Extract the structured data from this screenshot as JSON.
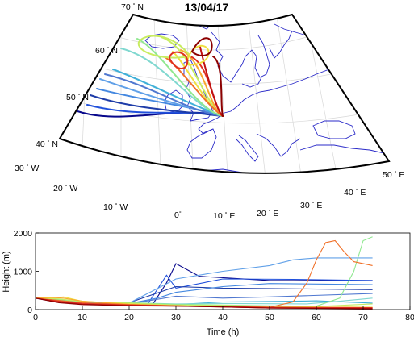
{
  "map": {
    "date_title": "13/04/17",
    "lat_labels": [
      "70",
      "60",
      "50",
      "40"
    ],
    "lon_labels": [
      "30",
      "20",
      "10",
      "0",
      "10",
      "20",
      "30",
      "40",
      "50"
    ],
    "lat_suffix": "N",
    "lon_suffixes": {
      "west": "W",
      "east": "E"
    },
    "degree_symbol": "°",
    "colors": {
      "coast": "#2a2ac8",
      "frame": "#000000",
      "grid": "#d0d0d0"
    }
  },
  "chart_data": {
    "type": "line",
    "title": "",
    "xlabel": "Time (h)",
    "ylabel": "Height (m)",
    "xlim": [
      0,
      80
    ],
    "ylim": [
      0,
      2000
    ],
    "xticks": [
      0,
      10,
      20,
      30,
      40,
      50,
      60,
      70,
      80
    ],
    "yticks": [
      0,
      1000,
      2000
    ],
    "grid": false,
    "series": [
      {
        "color": "#08088c",
        "x": [
          0,
          3,
          6,
          10,
          20,
          25,
          28,
          30,
          35,
          50,
          72
        ],
        "y": [
          300,
          230,
          200,
          150,
          140,
          130,
          700,
          1200,
          870,
          760,
          760
        ]
      },
      {
        "color": "#2050dc",
        "x": [
          0,
          3,
          6,
          10,
          20,
          24,
          28,
          30,
          40,
          55,
          72
        ],
        "y": [
          300,
          240,
          200,
          160,
          140,
          150,
          900,
          560,
          800,
          790,
          760
        ]
      },
      {
        "color": "#1e3ca8",
        "x": [
          0,
          5,
          10,
          20,
          30,
          40,
          72
        ],
        "y": [
          300,
          220,
          200,
          180,
          600,
          560,
          520
        ]
      },
      {
        "color": "#4488e0",
        "x": [
          0,
          5,
          10,
          20,
          26,
          30,
          40,
          50,
          72
        ],
        "y": [
          300,
          220,
          170,
          160,
          300,
          450,
          600,
          680,
          650
        ]
      },
      {
        "color": "#60a0e8",
        "x": [
          0,
          5,
          10,
          20,
          30,
          40,
          50,
          55,
          60,
          72
        ],
        "y": [
          300,
          230,
          190,
          170,
          800,
          1000,
          1150,
          1300,
          1350,
          1350
        ]
      },
      {
        "color": "#5078d0",
        "x": [
          0,
          5,
          10,
          20,
          30,
          40,
          50,
          72
        ],
        "y": [
          300,
          210,
          180,
          150,
          350,
          300,
          330,
          420
        ]
      },
      {
        "color": "#40b0d8",
        "x": [
          0,
          5,
          10,
          22,
          30,
          40,
          55,
          60,
          72
        ],
        "y": [
          300,
          240,
          190,
          150,
          130,
          200,
          220,
          230,
          170
        ]
      },
      {
        "color": "#80d8d0",
        "x": [
          0,
          5,
          10,
          20,
          30,
          40,
          58,
          65,
          72
        ],
        "y": [
          300,
          250,
          200,
          180,
          150,
          160,
          150,
          220,
          300
        ]
      },
      {
        "color": "#90e890",
        "x": [
          0,
          5,
          10,
          20,
          30,
          40,
          50,
          60,
          65,
          68,
          70,
          72
        ],
        "y": [
          300,
          260,
          200,
          180,
          140,
          120,
          100,
          90,
          300,
          1000,
          1800,
          1900
        ]
      },
      {
        "color": "#c8ec60",
        "x": [
          0,
          5,
          10,
          20,
          30,
          40,
          50,
          60,
          72
        ],
        "y": [
          300,
          280,
          210,
          170,
          120,
          110,
          90,
          80,
          150
        ]
      },
      {
        "color": "#f0e040",
        "x": [
          0,
          4,
          6,
          10,
          20,
          30,
          40,
          50,
          72
        ],
        "y": [
          300,
          310,
          330,
          220,
          150,
          100,
          80,
          70,
          60
        ]
      },
      {
        "color": "#f8a830",
        "x": [
          0,
          3,
          6,
          10,
          20,
          30,
          40,
          50,
          72
        ],
        "y": [
          300,
          320,
          300,
          220,
          140,
          100,
          70,
          60,
          50
        ]
      },
      {
        "color": "#f07028",
        "x": [
          0,
          5,
          10,
          20,
          30,
          40,
          50,
          55,
          58,
          60,
          62,
          64,
          66,
          68,
          72
        ],
        "y": [
          300,
          240,
          180,
          130,
          100,
          80,
          60,
          200,
          700,
          1300,
          1750,
          1800,
          1500,
          1250,
          1150
        ]
      },
      {
        "color": "#e03020",
        "x": [
          0,
          5,
          10,
          20,
          30,
          40,
          50,
          72
        ],
        "y": [
          300,
          220,
          160,
          120,
          100,
          80,
          60,
          50
        ]
      },
      {
        "color": "#c01010",
        "x": [
          0,
          5,
          10,
          20,
          30,
          40,
          50,
          72
        ],
        "y": [
          300,
          200,
          140,
          110,
          90,
          70,
          40,
          30
        ]
      },
      {
        "color": "#8c0000",
        "x": [
          0,
          5,
          10,
          20,
          30,
          40,
          50,
          72
        ],
        "y": [
          300,
          180,
          130,
          100,
          90,
          70,
          40,
          20
        ]
      }
    ]
  }
}
